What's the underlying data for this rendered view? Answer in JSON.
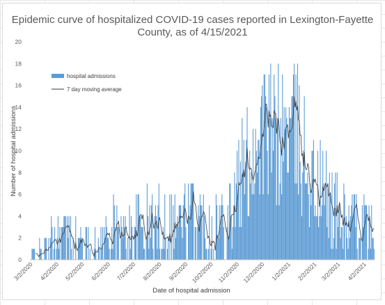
{
  "chart_data": {
    "type": "bar",
    "title_lines": [
      "Epidemic curve of hospitalized COVID-19 cases reported in Lexington-Fayette",
      "County, as of 4/15/2021"
    ],
    "xlabel": "Date of hospital admission",
    "ylabel": "Number of hospital admissions",
    "ylim": [
      0,
      20
    ],
    "y_ticks": [
      "0",
      "2",
      "4",
      "6",
      "8",
      "10",
      "12",
      "14",
      "16",
      "18",
      "20"
    ],
    "x_ticks": [
      "3/2/2020",
      "4/2/2020",
      "5/2/2020",
      "6/2/2020",
      "7/2/2020",
      "8/2/2020",
      "9/2/2020",
      "10/2/2020",
      "11/2/2020",
      "12/2/2020",
      "1/2/2021",
      "2/2/2021",
      "3/2/2021",
      "4/2/2021"
    ],
    "x_start": "2020-03-01",
    "x_end": "2021-04-14",
    "grid": false,
    "legend_position": "top-left",
    "series": [
      {
        "name": "hospital admissions",
        "kind": "bar",
        "color": "#5b9bd5",
        "anchors_date": [
          "2020-03-01",
          "2020-03-20",
          "2020-04-05",
          "2020-04-15",
          "2020-05-01",
          "2020-05-20",
          "2020-06-05",
          "2020-06-20",
          "2020-07-05",
          "2020-07-20",
          "2020-08-05",
          "2020-08-20",
          "2020-09-05",
          "2020-09-20",
          "2020-10-05",
          "2020-10-20",
          "2020-11-01",
          "2020-11-15",
          "2020-12-01",
          "2020-12-15",
          "2021-01-01",
          "2021-01-15",
          "2021-02-01",
          "2021-02-15",
          "2021-03-01",
          "2021-03-15",
          "2021-04-01",
          "2021-04-14"
        ],
        "anchors_value": [
          0,
          0.5,
          2.5,
          2,
          1,
          1,
          2.5,
          2,
          3,
          3,
          3.5,
          3.5,
          4,
          3.5,
          3,
          4,
          6,
          9,
          12,
          11,
          12,
          11,
          7,
          6,
          4,
          3,
          3,
          2
        ]
      },
      {
        "name": "7 day moving average",
        "kind": "line",
        "color": "#3a3a3a"
      }
    ]
  }
}
